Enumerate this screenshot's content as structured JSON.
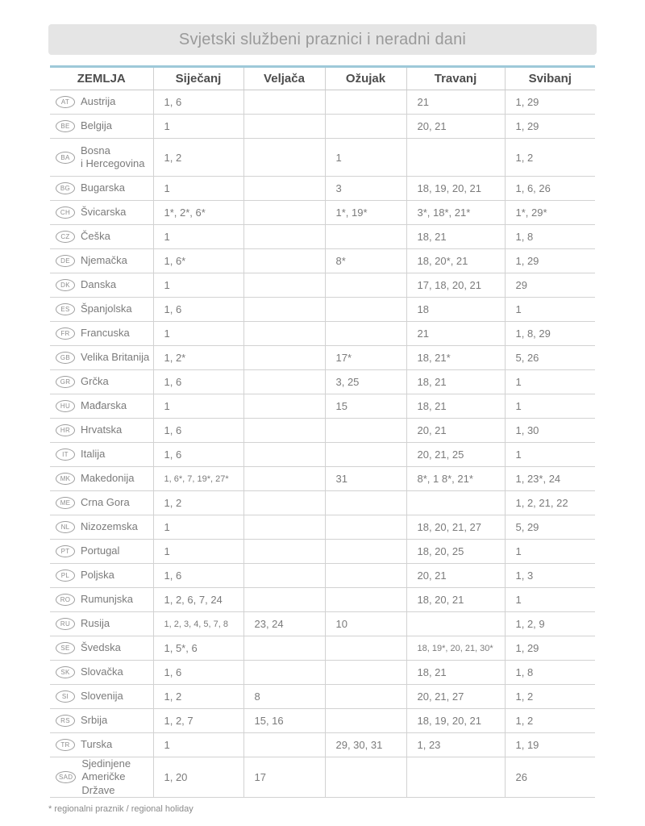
{
  "title": "Svjetski službeni praznici i neradni dani",
  "footnote": "* regionalni praznik / regional holiday",
  "colors": {
    "accent_top_border": "#9ec9d9",
    "title_bar_bg": "#e5e5e5",
    "text_gray": "#7b7b7b"
  },
  "table": {
    "columns": [
      "ZEMLJA",
      "Siječanj",
      "Veljača",
      "Ožujak",
      "Travanj",
      "Svibanj"
    ],
    "rows": [
      {
        "code": "AT",
        "country": "Austrija",
        "months": [
          "1, 6",
          "",
          "",
          "21",
          "1, 29"
        ]
      },
      {
        "code": "BE",
        "country": "Belgija",
        "months": [
          "1",
          "",
          "",
          "20, 21",
          "1, 29"
        ]
      },
      {
        "code": "BA",
        "country": "Bosna\ni Hercegovina",
        "months": [
          "1, 2",
          "",
          "1",
          "",
          "1, 2"
        ]
      },
      {
        "code": "BG",
        "country": "Bugarska",
        "months": [
          "1",
          "",
          "3",
          "18, 19, 20, 21",
          "1, 6, 26"
        ]
      },
      {
        "code": "CH",
        "country": "Švicarska",
        "months": [
          "1*, 2*, 6*",
          "",
          "1*, 19*",
          "3*, 18*, 21*",
          "1*, 29*"
        ]
      },
      {
        "code": "CZ",
        "country": "Češka",
        "months": [
          "1",
          "",
          "",
          "18, 21",
          "1, 8"
        ]
      },
      {
        "code": "DE",
        "country": "Njemačka",
        "months": [
          "1, 6*",
          "",
          "8*",
          "18, 20*, 21",
          "1, 29"
        ]
      },
      {
        "code": "DK",
        "country": "Danska",
        "months": [
          "1",
          "",
          "",
          "17, 18, 20, 21",
          "29"
        ]
      },
      {
        "code": "ES",
        "country": "Španjolska",
        "months": [
          "1, 6",
          "",
          "",
          "18",
          "1"
        ]
      },
      {
        "code": "FR",
        "country": "Francuska",
        "months": [
          "1",
          "",
          "",
          "21",
          "1, 8, 29"
        ]
      },
      {
        "code": "GB",
        "country": "Velika Britanija",
        "months": [
          "1, 2*",
          "",
          "17*",
          "18, 21*",
          "5, 26"
        ]
      },
      {
        "code": "GR",
        "country": "Grčka",
        "months": [
          "1, 6",
          "",
          "3, 25",
          "18, 21",
          "1"
        ]
      },
      {
        "code": "HU",
        "country": "Mađarska",
        "months": [
          "1",
          "",
          "15",
          "18, 21",
          "1"
        ]
      },
      {
        "code": "HR",
        "country": "Hrvatska",
        "months": [
          "1, 6",
          "",
          "",
          "20, 21",
          "1, 30"
        ]
      },
      {
        "code": "IT",
        "country": "Italija",
        "months": [
          "1, 6",
          "",
          "",
          "20, 21, 25",
          "1"
        ]
      },
      {
        "code": "MK",
        "country": "Makedonija",
        "months": [
          "1, 6*, 7, 19*, 27*",
          "",
          "31",
          "8*, 1 8*, 21*",
          "1, 23*, 24"
        ]
      },
      {
        "code": "ME",
        "country": "Crna Gora",
        "months": [
          "1, 2",
          "",
          "",
          "",
          "1, 2, 21, 22"
        ]
      },
      {
        "code": "NL",
        "country": "Nizozemska",
        "months": [
          "1",
          "",
          "",
          "18, 20, 21, 27",
          "5, 29"
        ]
      },
      {
        "code": "PT",
        "country": "Portugal",
        "months": [
          "1",
          "",
          "",
          "18, 20, 25",
          "1"
        ]
      },
      {
        "code": "PL",
        "country": "Poljska",
        "months": [
          "1, 6",
          "",
          "",
          "20, 21",
          "1, 3"
        ]
      },
      {
        "code": "RO",
        "country": "Rumunjska",
        "months": [
          "1, 2, 6, 7, 24",
          "",
          "",
          "18, 20, 21",
          "1"
        ]
      },
      {
        "code": "RU",
        "country": "Rusija",
        "months": [
          "1, 2, 3, 4, 5, 7, 8",
          "23, 24",
          "10",
          "",
          "1, 2, 9"
        ]
      },
      {
        "code": "SE",
        "country": "Švedska",
        "months": [
          "1, 5*, 6",
          "",
          "",
          "18, 19*, 20, 21, 30*",
          "1, 29"
        ]
      },
      {
        "code": "SK",
        "country": "Slovačka",
        "months": [
          "1, 6",
          "",
          "",
          "18, 21",
          "1, 8"
        ]
      },
      {
        "code": "SI",
        "country": "Slovenija",
        "months": [
          "1, 2",
          "8",
          "",
          "20, 21, 27",
          "1, 2"
        ]
      },
      {
        "code": "RS",
        "country": "Srbija",
        "months": [
          "1, 2, 7",
          "15, 16",
          "",
          "18, 19, 20, 21",
          "1, 2"
        ]
      },
      {
        "code": "TR",
        "country": "Turska",
        "months": [
          "1",
          "",
          "29, 30, 31",
          "1, 23",
          "1, 19"
        ]
      },
      {
        "code": "SAD",
        "country": "Sjedinjene\nAmeričke Države",
        "months": [
          "1, 20",
          "17",
          "",
          "",
          "26"
        ]
      }
    ]
  }
}
